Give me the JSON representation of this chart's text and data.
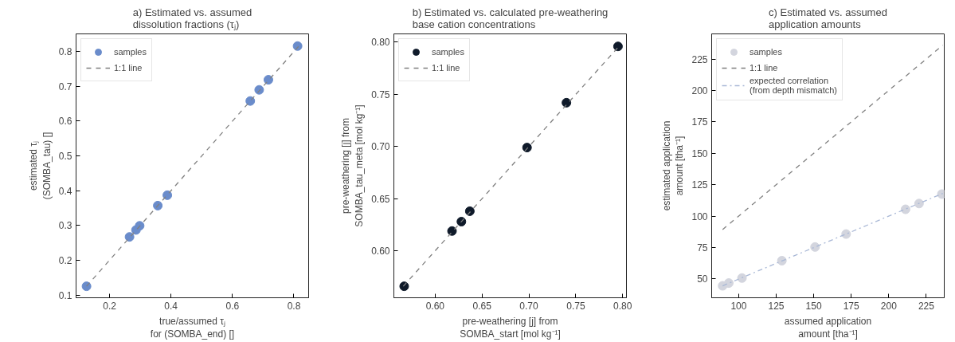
{
  "chart_data": [
    {
      "type": "scatter",
      "title": "a) Estimated vs. assumed\ndissolution fractions (τⱼ)",
      "xlabel": "true/assumed τⱼ\nfor (SOMBA_end) []",
      "ylabel": "estimated τⱼ\n(SOMBA_tau) []",
      "xlim": [
        0.091,
        0.848
      ],
      "ylim": [
        0.092,
        0.851
      ],
      "xticks": [
        0.2,
        0.4,
        0.6,
        0.8
      ],
      "yticks": [
        0.1,
        0.2,
        0.3,
        0.4,
        0.5,
        0.6,
        0.7,
        0.8
      ],
      "grid": false,
      "legend": "top left",
      "series": [
        {
          "name": "samples",
          "marker": "circle",
          "color": "#6a8ccb",
          "x": [
            0.125,
            0.265,
            0.286,
            0.298,
            0.357,
            0.388,
            0.658,
            0.687,
            0.717,
            0.812
          ],
          "values": [
            0.125,
            0.267,
            0.287,
            0.299,
            0.357,
            0.387,
            0.658,
            0.69,
            0.719,
            0.816
          ]
        },
        {
          "name": "1:1 line",
          "type": "line",
          "line_style": "dashed",
          "color": "#808080",
          "x": [
            0.125,
            0.815
          ],
          "values": [
            0.125,
            0.815
          ]
        }
      ]
    },
    {
      "type": "scatter",
      "title": "b) Estimated vs. calculated pre-weathering\nbase cation concentrations",
      "xlabel": "pre-weathering [j] from\nSOMBA_start [mol kg⁻¹]",
      "ylabel": "pre-weathering [j] from\nSOMBA_tau_meta [mol kg⁻¹]",
      "xlim": [
        0.556,
        0.804
      ],
      "ylim": [
        0.555,
        0.808
      ],
      "xticks": [
        {
          "value": 0.6,
          "label": "0.60"
        },
        0.65,
        {
          "value": 0.7,
          "label": "0.70"
        },
        0.75,
        {
          "value": 0.8,
          "label": "0.80"
        }
      ],
      "yticks": [
        {
          "value": 0.6,
          "label": "0.60"
        },
        0.65,
        {
          "value": 0.7,
          "label": "0.70"
        },
        0.75,
        {
          "value": 0.8,
          "label": "0.80"
        }
      ],
      "grid": false,
      "legend": "top left",
      "series": [
        {
          "name": "samples",
          "marker": "circle",
          "color": "#0f1a2a",
          "x": [
            0.567,
            0.618,
            0.628,
            0.637,
            0.698,
            0.74,
            0.795
          ],
          "values": [
            0.566,
            0.619,
            0.628,
            0.638,
            0.699,
            0.742,
            0.796
          ]
        },
        {
          "name": "1:1 line",
          "type": "line",
          "line_style": "dashed",
          "color": "#808080",
          "x": [
            0.566,
            0.796
          ],
          "values": [
            0.566,
            0.796
          ]
        }
      ]
    },
    {
      "type": "scatter",
      "title": "c) Estimated vs. assumed\napplication amounts",
      "xlabel": "assumed application\namount [tha⁻¹]",
      "ylabel": "estimated application\namount [tha⁻¹]",
      "xlim": [
        82,
        237
      ],
      "ylim": [
        35,
        245
      ],
      "xticks": [
        100,
        125,
        150,
        175,
        200,
        225
      ],
      "yticks": [
        50,
        75,
        100,
        125,
        150,
        175,
        200,
        225
      ],
      "grid": false,
      "legend": "top left",
      "series": [
        {
          "name": "samples",
          "marker": "circle",
          "color": "#d3d5de",
          "x": [
            89.3,
            93.4,
            102.2,
            128.8,
            150.9,
            171.6,
            211.2,
            220.2,
            235.4
          ],
          "values": [
            44.5,
            46.7,
            50.7,
            64.5,
            75.4,
            85.7,
            105.4,
            110.0,
            117.5
          ]
        },
        {
          "name": "1:1 line",
          "type": "line",
          "line_style": "dashed",
          "color": "#808080",
          "x": [
            89.3,
            236
          ],
          "values": [
            89.3,
            236
          ]
        },
        {
          "name": "expected correlation\n(from depth mismatch)",
          "type": "line",
          "line_style": "dashdot",
          "color": "#a9b8d6",
          "x": [
            89.3,
            236
          ],
          "values": [
            44.5,
            118
          ]
        }
      ]
    }
  ]
}
